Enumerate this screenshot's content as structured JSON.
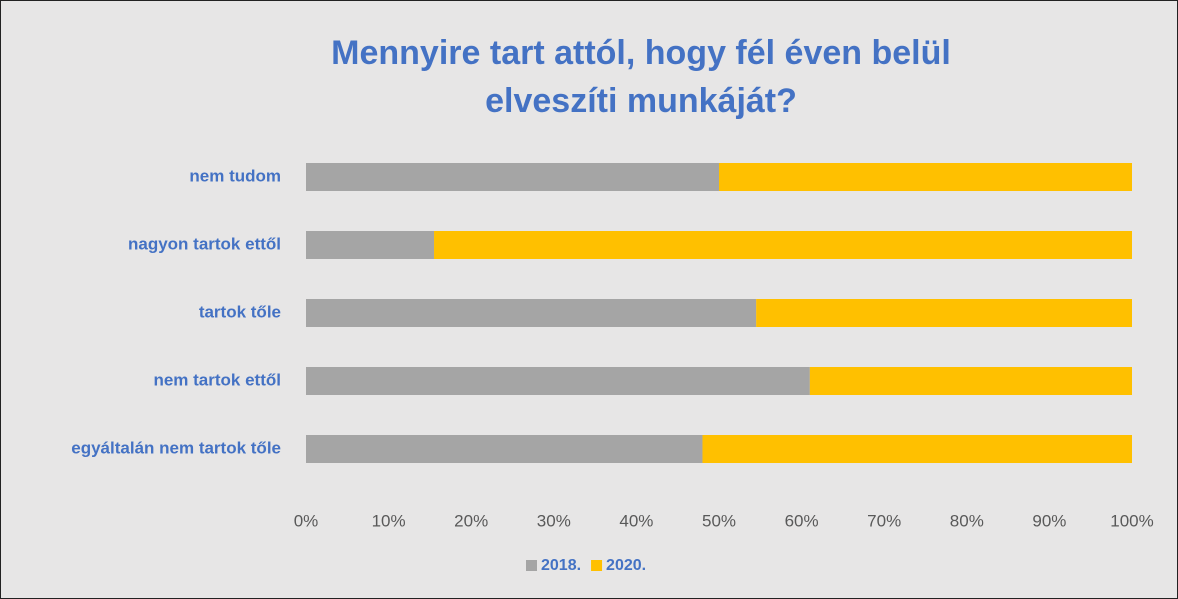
{
  "chart_data": {
    "type": "stacked_bar_horizontal",
    "title": "Mennyire tart attól, hogy fél éven belül elveszíti munkáját?",
    "categories": [
      "nem tudom",
      "nagyon tartok ettől",
      "tartok tőle",
      "nem tartok ettől",
      "egyáltalán nem tartok tőle"
    ],
    "series": [
      {
        "name": "2018.",
        "color": "#a5a5a5",
        "values": [
          50,
          15.5,
          54.5,
          61,
          48
        ]
      },
      {
        "name": "2020.",
        "color": "#ffc000",
        "values": [
          50,
          84.5,
          45.5,
          39,
          52
        ]
      }
    ],
    "xlim": [
      0,
      100
    ],
    "xticks": [
      {
        "value": 0,
        "label": "0%"
      },
      {
        "value": 10,
        "label": "10%"
      },
      {
        "value": 20,
        "label": "20%"
      },
      {
        "value": 30,
        "label": "30%"
      },
      {
        "value": 40,
        "label": "40%"
      },
      {
        "value": 50,
        "label": "50%"
      },
      {
        "value": 60,
        "label": "60%"
      },
      {
        "value": 70,
        "label": "70%"
      },
      {
        "value": 80,
        "label": "80%"
      },
      {
        "value": 90,
        "label": "90%"
      },
      {
        "value": 100,
        "label": "100%"
      }
    ],
    "grid": false,
    "legend": "bottom"
  }
}
